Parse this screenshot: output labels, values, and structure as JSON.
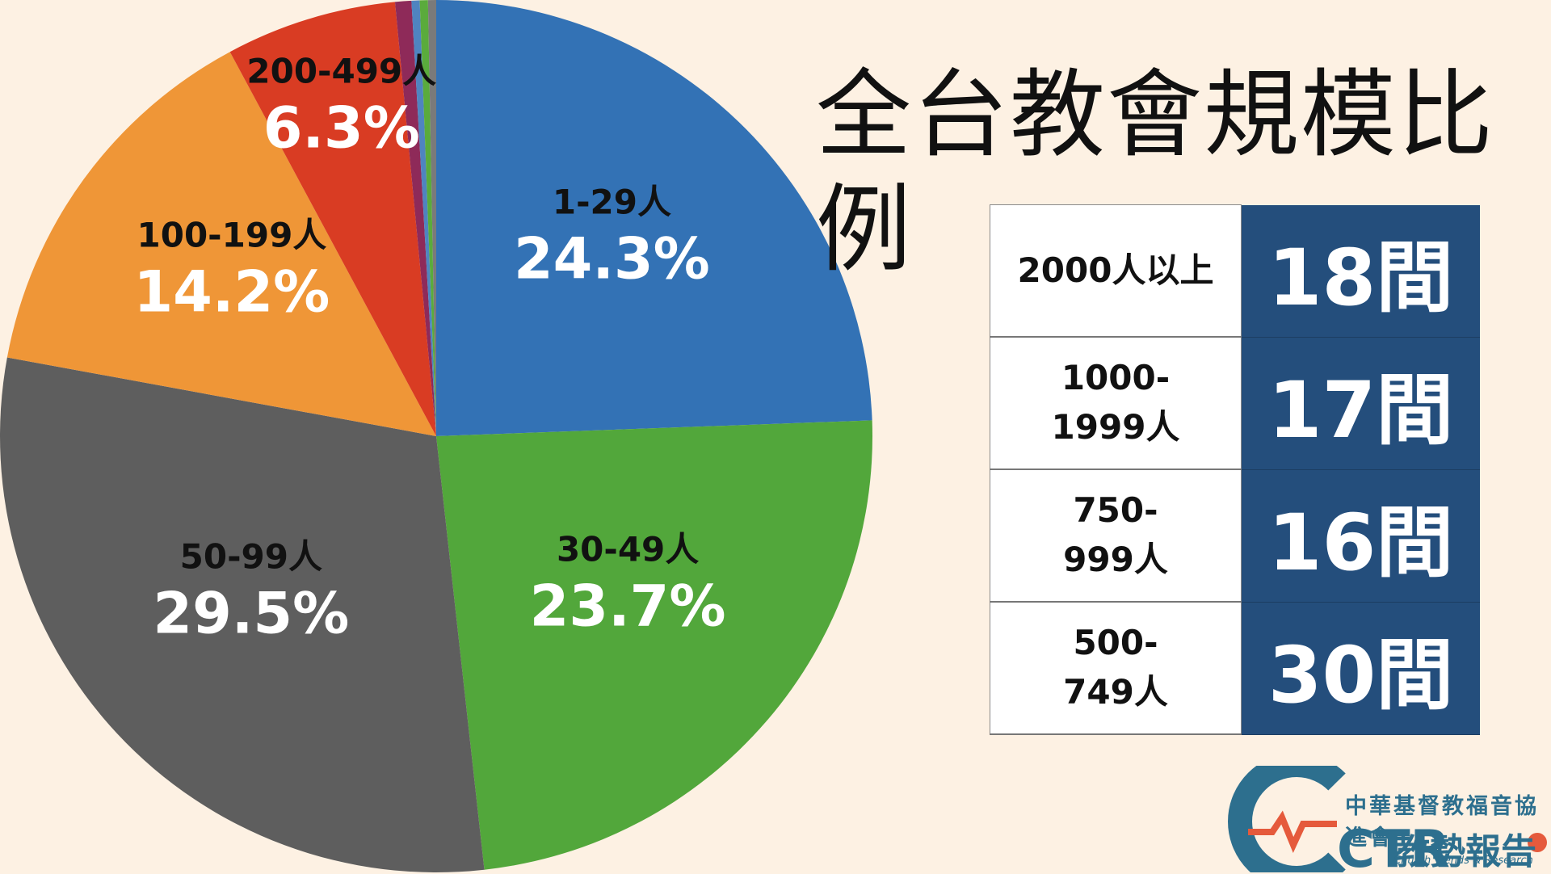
{
  "title": "全台教會規模比例",
  "chart_data": {
    "type": "pie",
    "slices": [
      {
        "label": "1-29人",
        "value": 24.3,
        "pct_label": "24.3%",
        "color": "#3372b5"
      },
      {
        "label": "30-49人",
        "value": 23.7,
        "pct_label": "23.7%",
        "color": "#52a73b"
      },
      {
        "label": "50-99人",
        "value": 29.5,
        "pct_label": "29.5%",
        "color": "#5e5e5e"
      },
      {
        "label": "100-199人",
        "value": 14.2,
        "pct_label": "14.2%",
        "color": "#ef9637"
      },
      {
        "label": "200-499人",
        "value": 6.3,
        "pct_label": "6.3%",
        "color": "#d93c23"
      },
      {
        "label": "",
        "value": 0.6,
        "pct_label": "",
        "color": "#8e2a59"
      },
      {
        "label": "",
        "value": 0.3,
        "pct_label": "",
        "color": "#4f84c0"
      },
      {
        "label": "",
        "value": 0.3,
        "pct_label": "",
        "color": "#5aab3c"
      },
      {
        "label": "",
        "value": 0.3,
        "pct_label": "",
        "color": "#7a7a7a"
      }
    ]
  },
  "table": {
    "rows": [
      {
        "label_lines": [
          "2000人以上"
        ],
        "value": "18間"
      },
      {
        "label_lines": [
          "1000-",
          "1999人"
        ],
        "value": "17間"
      },
      {
        "label_lines": [
          "750-",
          "999人"
        ],
        "value": "16間"
      },
      {
        "label_lines": [
          "500-",
          "749人"
        ],
        "value": "30間"
      }
    ]
  },
  "logo": {
    "org": "中華基督教福音協進會",
    "name": "教勢報告",
    "en": "Church Trends & Research",
    "letters": "CTR"
  }
}
